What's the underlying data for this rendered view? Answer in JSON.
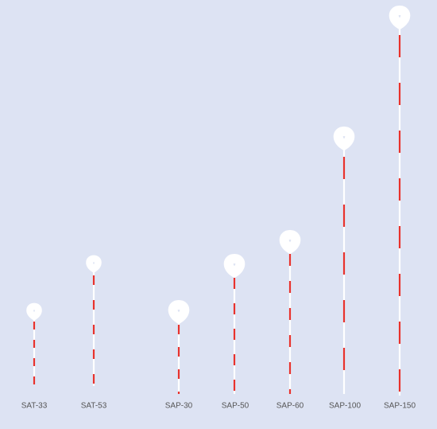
{
  "products": [
    {
      "label": "SAT-33"
    },
    {
      "label": "SAT-53"
    },
    {
      "label": "SAP-30"
    },
    {
      "label": "SAP-50"
    },
    {
      "label": "SAP-60"
    },
    {
      "label": "SAP-100"
    },
    {
      "label": "SAP-150"
    }
  ]
}
